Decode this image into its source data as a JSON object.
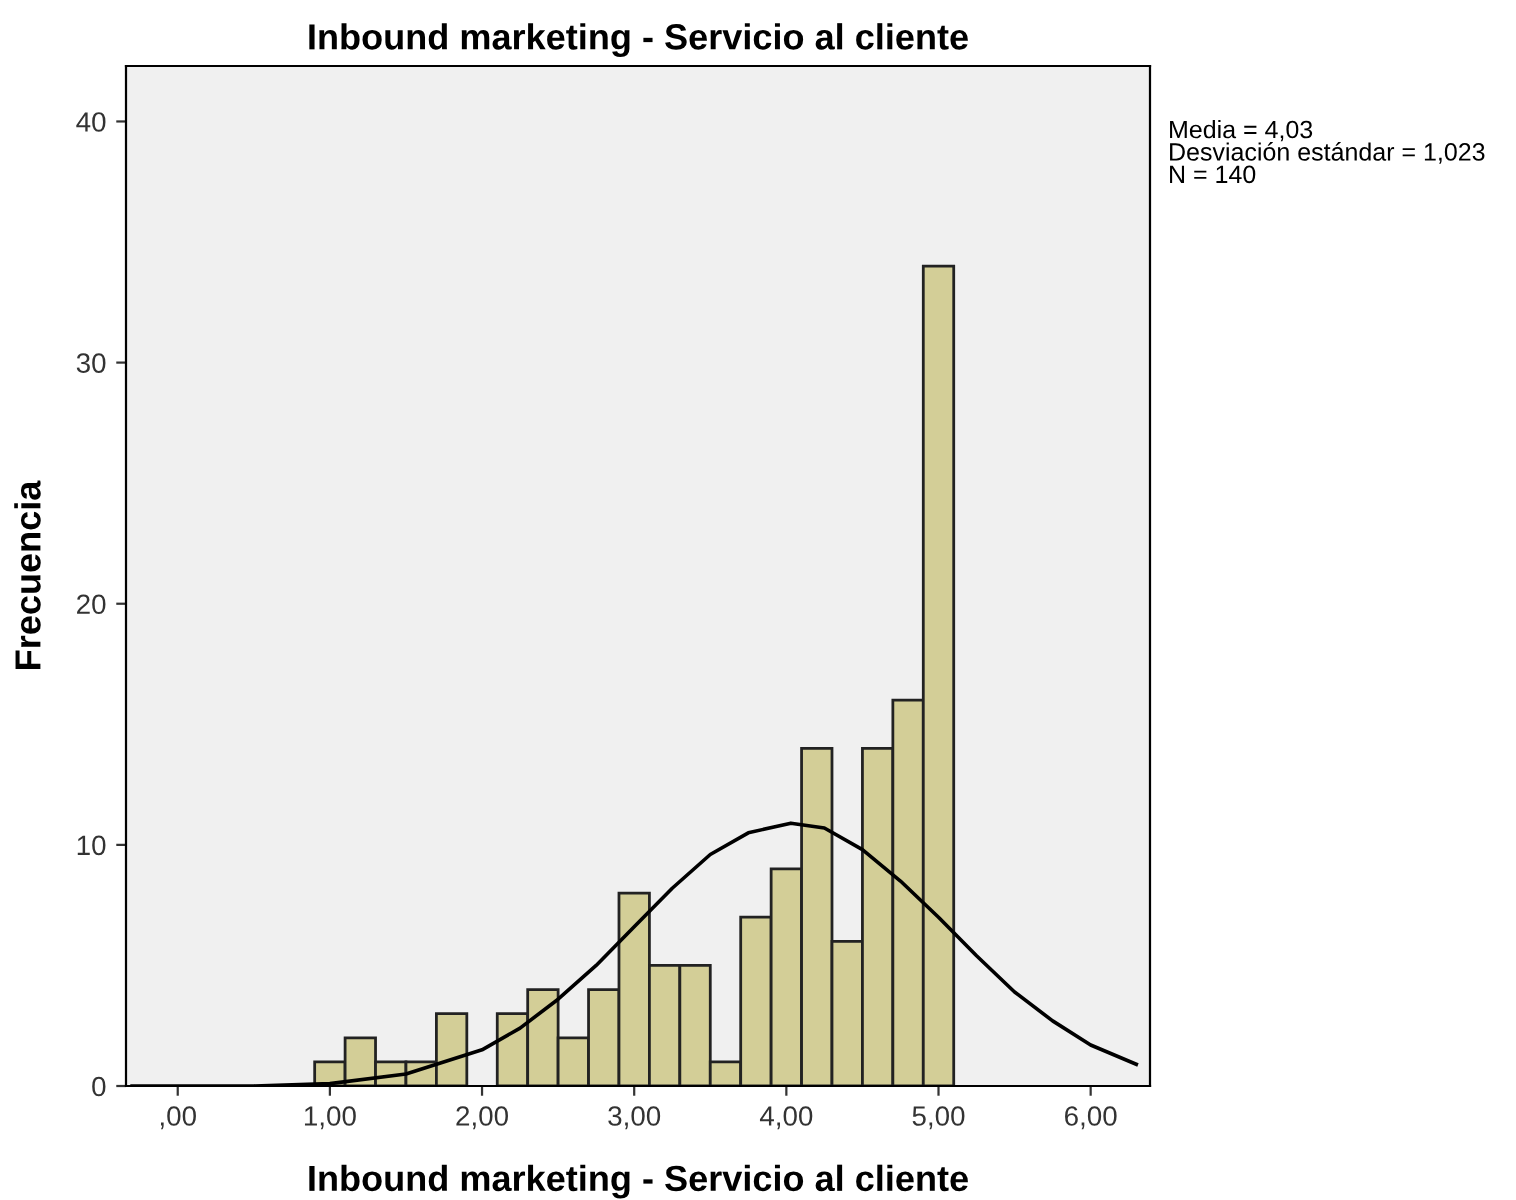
{
  "chart_data": {
    "type": "histogram",
    "title": "Inbound marketing - Servicio al cliente",
    "xlabel": "Inbound marketing - Servicio al cliente",
    "ylabel": "Frecuencia",
    "annotations": [
      "Media = 4,03\nDesviación estándar = 1,023\nN = 140"
    ],
    "series": [
      {
        "type": "histogram",
        "color": "#d3ce97",
        "bins": [
          0.9,
          1.1,
          1.3,
          1.5,
          1.7,
          1.9,
          2.1,
          2.3,
          2.5,
          2.7,
          2.9,
          3.1,
          3.3,
          3.5,
          3.7,
          3.9,
          4.1,
          4.3,
          4.5,
          4.7,
          4.9,
          5.1
        ],
        "values": [
          1,
          2,
          1,
          1,
          3,
          0,
          3,
          4,
          2,
          4,
          8,
          5,
          5,
          1,
          7,
          9,
          14,
          6,
          14,
          16,
          34
        ]
      },
      {
        "type": "line",
        "color": "#000000",
        "x": [
          -0.3,
          0.0,
          0.5,
          1.0,
          1.5,
          2.0,
          2.25,
          2.5,
          2.75,
          3.0,
          3.25,
          3.5,
          3.75,
          4.03,
          4.25,
          4.5,
          4.75,
          5.0,
          5.25,
          5.5,
          5.75,
          6.0,
          6.3
        ],
        "values": [
          0.0,
          0.0,
          0.0,
          0.1,
          0.5,
          1.5,
          2.4,
          3.6,
          5.0,
          6.6,
          8.2,
          9.6,
          10.5,
          10.9,
          10.7,
          9.8,
          8.5,
          7.0,
          5.4,
          3.9,
          2.7,
          1.7,
          0.9
        ]
      }
    ],
    "xlim": [
      -0.34,
      6.39
    ],
    "ylim": [
      0,
      42.3
    ],
    "xticks": [
      {
        "value": 0,
        "label": ",00"
      },
      {
        "value": 1,
        "label": "1,00"
      },
      {
        "value": 2,
        "label": "2,00"
      },
      {
        "value": 3,
        "label": "3,00"
      },
      {
        "value": 4,
        "label": "4,00"
      },
      {
        "value": 5,
        "label": "5,00"
      },
      {
        "value": 6,
        "label": "6,00"
      }
    ],
    "yticks": [
      0,
      10,
      20,
      30,
      40
    ],
    "grid": false
  }
}
